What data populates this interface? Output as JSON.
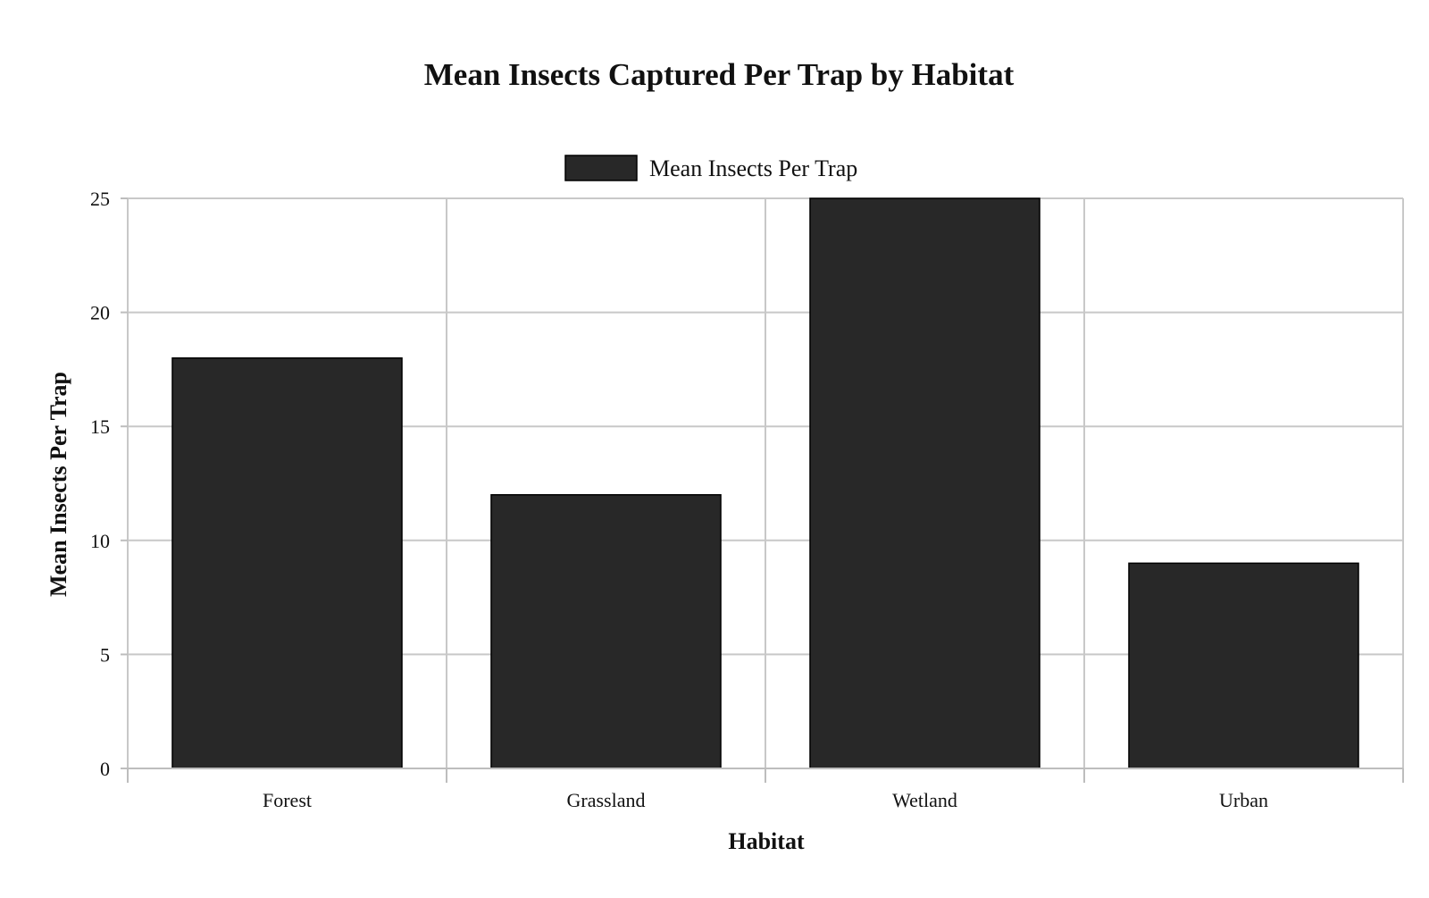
{
  "chart_data": {
    "type": "bar",
    "title": "Mean Insects Captured Per Trap by Habitat",
    "xlabel": "Habitat",
    "ylabel": "Mean Insects Per Trap",
    "categories": [
      "Forest",
      "Grassland",
      "Wetland",
      "Urban"
    ],
    "series": [
      {
        "name": "Mean Insects Per Trap",
        "values": [
          18,
          12,
          25,
          9
        ],
        "color": "#282828"
      }
    ],
    "ylim": [
      0,
      25
    ],
    "yticks": [
      0,
      5,
      10,
      15,
      20,
      25
    ],
    "grid": true,
    "legend_position": "top-center"
  }
}
